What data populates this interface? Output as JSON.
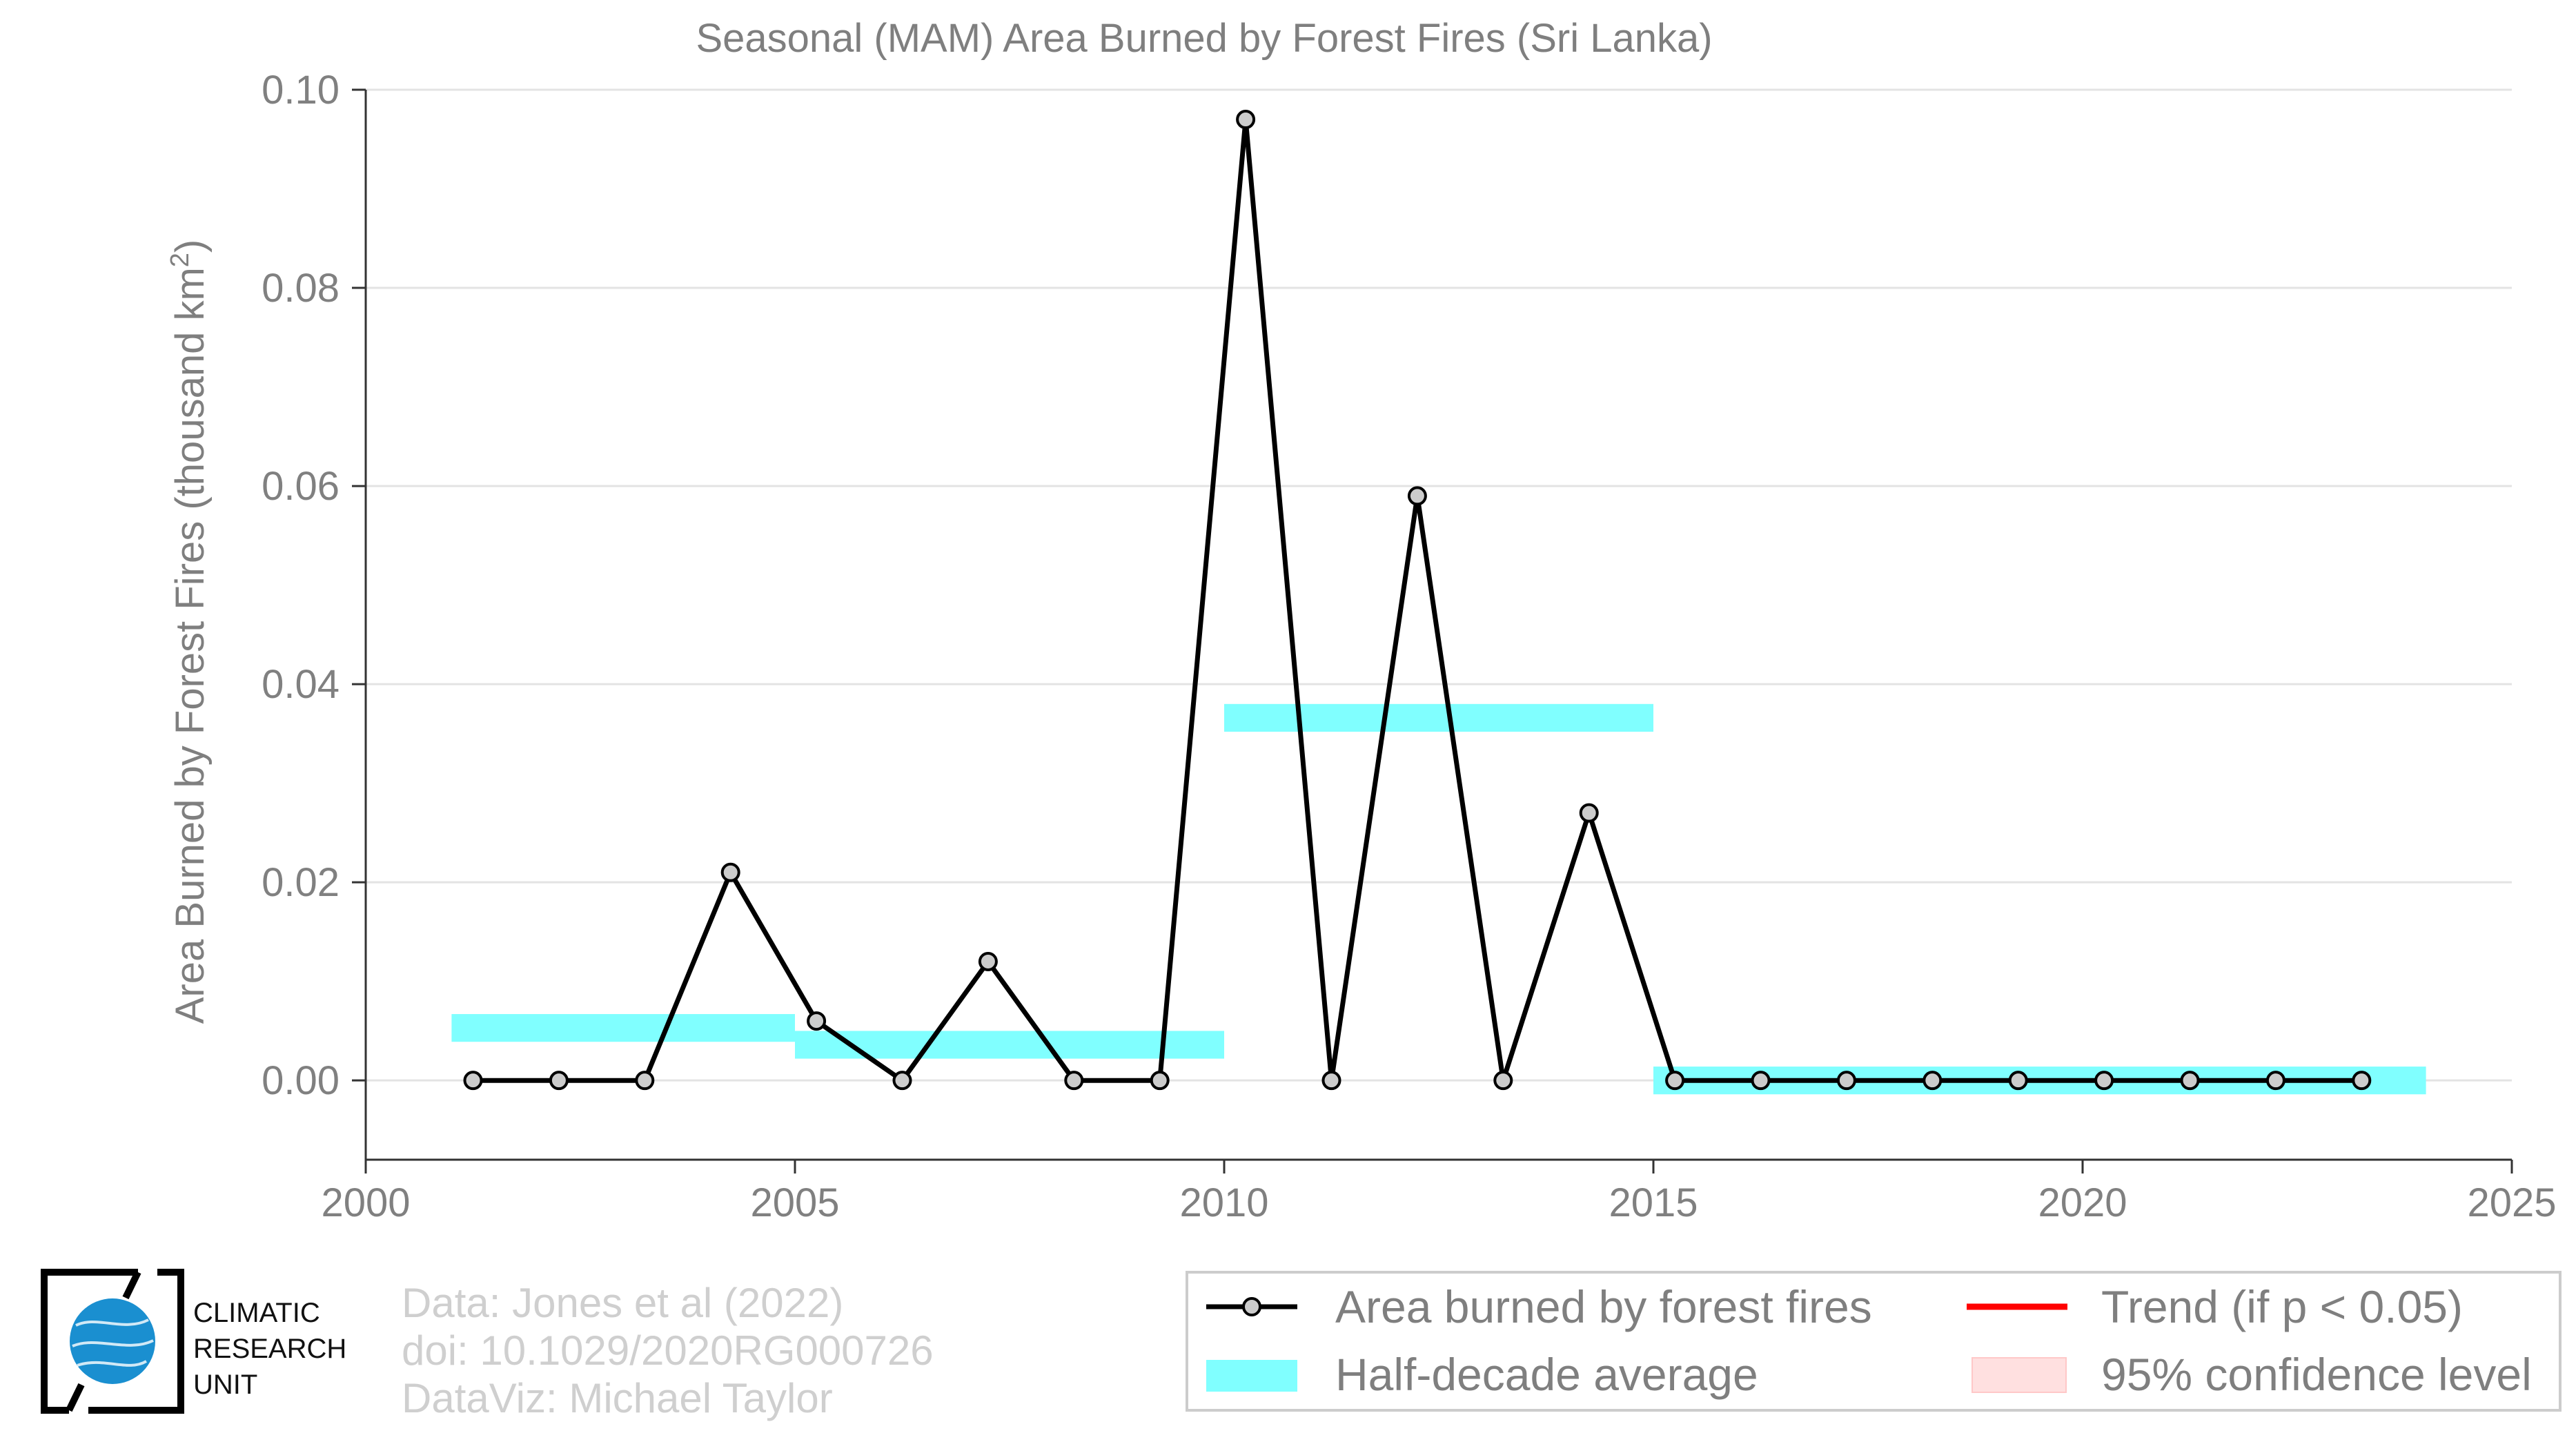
{
  "chart_data": {
    "type": "line",
    "title": "Seasonal (MAM) Area Burned by Forest Fires (Sri Lanka)",
    "xlabel": "",
    "ylabel": "Area Burned by Forest Fires (thousand km",
    "ylabel_sup": "2",
    "ylabel_close": ")",
    "xlim": [
      2000,
      2025
    ],
    "ylim": [
      -0.008,
      0.1
    ],
    "x_ticks": [
      2000,
      2005,
      2010,
      2015,
      2020,
      2025
    ],
    "x_tick_labels": [
      "2000",
      "2005",
      "2010",
      "2015",
      "2020",
      "2025"
    ],
    "y_ticks": [
      0.0,
      0.02,
      0.04,
      0.06,
      0.08,
      0.1
    ],
    "y_tick_labels": [
      "0.00",
      "0.02",
      "0.04",
      "0.06",
      "0.08",
      "0.10"
    ],
    "grid": "horizontal",
    "series": [
      {
        "name": "Area burned by forest fires",
        "color": "#000000",
        "marker_fill": "#cccccc",
        "x": [
          2001.25,
          2002.25,
          2003.25,
          2004.25,
          2005.25,
          2006.25,
          2007.25,
          2008.25,
          2009.25,
          2010.25,
          2011.25,
          2012.25,
          2013.25,
          2014.25,
          2015.25,
          2016.25,
          2017.25,
          2018.25,
          2019.25,
          2020.25,
          2021.25,
          2022.25,
          2023.25
        ],
        "y": [
          0.0,
          0.0,
          0.0,
          0.021,
          0.006,
          0.0,
          0.012,
          0.0,
          0.0,
          0.097,
          0.0,
          0.059,
          0.0,
          0.027,
          0.0,
          0.0,
          0.0,
          0.0,
          0.0,
          0.0,
          0.0,
          0.0,
          0.0
        ]
      }
    ],
    "half_decade_average": {
      "name": "Half-decade average",
      "color": "#80ffff",
      "segments": [
        {
          "x_start": 2001,
          "x_end": 2005,
          "value": 0.0053
        },
        {
          "x_start": 2005,
          "x_end": 2010,
          "value": 0.0036
        },
        {
          "x_start": 2010,
          "x_end": 2015,
          "value": 0.0366
        },
        {
          "x_start": 2015,
          "x_end": 2024,
          "value": 0.0
        }
      ]
    },
    "legend": {
      "placement": "bottom-right",
      "items": [
        {
          "label": "Area burned by forest fires",
          "kind": "line-marker",
          "color": "#000000"
        },
        {
          "label": "Trend (if p < 0.05)",
          "kind": "line",
          "color": "#ff0000"
        },
        {
          "label": "Half-decade average",
          "kind": "band",
          "color": "#80ffff"
        },
        {
          "label": "95% confidence level",
          "kind": "band",
          "color": "#ffe0e0"
        }
      ]
    }
  },
  "credits": {
    "line1": "Data: Jones et al (2022)",
    "line2": "doi: 10.1029/2020RG000726",
    "line3": "DataViz: Michael Taylor"
  },
  "logo": {
    "line1": "CLIMATIC",
    "line2": "RESEARCH",
    "line3": "UNIT",
    "globe_color": "#1a8fd0"
  }
}
